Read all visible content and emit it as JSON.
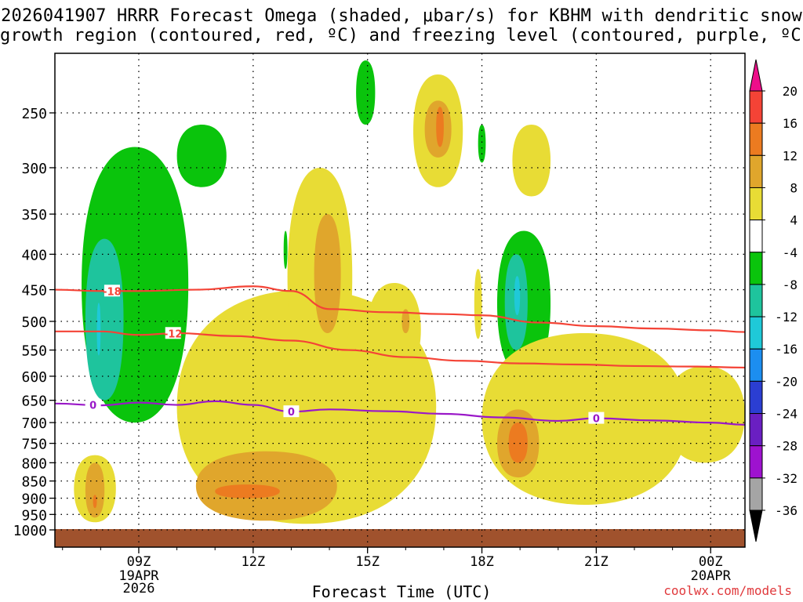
{
  "title": {
    "line1": "2026041907 HRRR Forecast Omega (shaded, μbar/s) for KBHM with dendritic snow",
    "line2": "growth region (contoured, red, ºC) and freezing level (contoured, purple, ºC)"
  },
  "credit": "coolwx.com/models",
  "chart_data": {
    "type": "contour",
    "title": "2026041907 HRRR Forecast Omega (shaded, μbar/s) for KBHM with dendritic snow growth region (contoured, red, ºC) and freezing level (contoured, purple, ºC)",
    "xlabel": "Forecast Time (UTC)",
    "ylabel": "",
    "xlim_hours": [
      6.8,
      24.9
    ],
    "ylim_mb": [
      1000,
      200
    ],
    "x_ticks": [
      {
        "hour": 9,
        "label": "09Z",
        "sub1": "19APR",
        "sub2": "2026"
      },
      {
        "hour": 12,
        "label": "12Z",
        "sub1": "",
        "sub2": ""
      },
      {
        "hour": 15,
        "label": "15Z",
        "sub1": "",
        "sub2": ""
      },
      {
        "hour": 18,
        "label": "18Z",
        "sub1": "",
        "sub2": ""
      },
      {
        "hour": 21,
        "label": "21Z",
        "sub1": "",
        "sub2": ""
      },
      {
        "hour": 24,
        "label": "00Z",
        "sub1": "20APR",
        "sub2": ""
      }
    ],
    "y_ticks": [
      250,
      300,
      350,
      400,
      450,
      500,
      550,
      600,
      650,
      700,
      750,
      800,
      850,
      900,
      950,
      1000
    ],
    "grid": true,
    "colorbar": {
      "levels": [
        20,
        16,
        12,
        8,
        4,
        -4,
        -8,
        -12,
        -16,
        -20,
        -24,
        -28,
        -32,
        -36
      ],
      "colors": [
        "#ee0e8a",
        "#f44336",
        "#ec7b20",
        "#e0a62c",
        "#e8dc35",
        "#ffffff",
        "#0ac40c",
        "#1ec49d",
        "#1fc9d8",
        "#1c8ef0",
        "#2b3ed2",
        "#6a1fc2",
        "#9e12cf",
        "#a5a5a5",
        "#000000"
      ]
    },
    "omega_regions": [
      {
        "label": "4",
        "color": "#e8dc35",
        "hour_range": [
          7.3,
          8.4
        ],
        "mb_range": [
          975,
          780
        ]
      },
      {
        "label": "8",
        "color": "#e0a62c",
        "hour_range": [
          7.6,
          8.1
        ],
        "mb_range": [
          960,
          800
        ]
      },
      {
        "label": "12",
        "color": "#ec7b20",
        "hour_range": [
          7.8,
          7.9
        ],
        "mb_range": [
          930,
          890
        ]
      },
      {
        "label": "-4",
        "color": "#0ac40c",
        "hour_range": [
          7.5,
          10.3
        ],
        "mb_range": [
          700,
          280
        ]
      },
      {
        "label": "-8",
        "color": "#1ec49d",
        "hour_range": [
          7.6,
          8.6
        ],
        "mb_range": [
          650,
          380
        ]
      },
      {
        "label": "-12",
        "color": "#1fc9d8",
        "hour_range": [
          7.9,
          8.0
        ],
        "mb_range": [
          560,
          470
        ]
      },
      {
        "label": "4",
        "color": "#e8dc35",
        "hour_range": [
          10.0,
          16.8
        ],
        "mb_range": [
          980,
          450
        ]
      },
      {
        "label": "8",
        "color": "#e0a62c",
        "hour_range": [
          10.5,
          14.2
        ],
        "mb_range": [
          970,
          770
        ]
      },
      {
        "label": "12",
        "color": "#ec7b20",
        "hour_range": [
          11.0,
          12.7
        ],
        "mb_range": [
          900,
          860
        ]
      },
      {
        "label": "-4",
        "color": "#0ac40c",
        "hour_range": [
          10.0,
          11.3
        ],
        "mb_range": [
          320,
          260
        ]
      },
      {
        "label": "-4",
        "color": "#0ac40c",
        "hour_range": [
          12.8,
          12.9
        ],
        "mb_range": [
          420,
          370
        ]
      },
      {
        "label": "4",
        "color": "#e8dc35",
        "hour_range": [
          12.9,
          14.6
        ],
        "mb_range": [
          620,
          300
        ]
      },
      {
        "label": "8",
        "color": "#e0a62c",
        "hour_range": [
          13.6,
          14.3
        ],
        "mb_range": [
          520,
          350
        ]
      },
      {
        "label": "-4",
        "color": "#0ac40c",
        "hour_range": [
          14.7,
          15.2
        ],
        "mb_range": [
          260,
          210
        ]
      },
      {
        "label": "4",
        "color": "#e8dc35",
        "hour_range": [
          15.0,
          16.4
        ],
        "mb_range": [
          600,
          440
        ]
      },
      {
        "label": "8",
        "color": "#e0a62c",
        "hour_range": [
          15.9,
          16.1
        ],
        "mb_range": [
          520,
          480
        ]
      },
      {
        "label": "4",
        "color": "#e8dc35",
        "hour_range": [
          16.2,
          17.5
        ],
        "mb_range": [
          320,
          220
        ]
      },
      {
        "label": "8",
        "color": "#e0a62c",
        "hour_range": [
          16.5,
          17.2
        ],
        "mb_range": [
          290,
          240
        ]
      },
      {
        "label": "12",
        "color": "#ec7b20",
        "hour_range": [
          16.8,
          17.0
        ],
        "mb_range": [
          280,
          245
        ]
      },
      {
        "label": "-4",
        "color": "#0ac40c",
        "hour_range": [
          17.9,
          18.1
        ],
        "mb_range": [
          295,
          260
        ]
      },
      {
        "label": "4",
        "color": "#e8dc35",
        "hour_range": [
          17.8,
          18.0
        ],
        "mb_range": [
          530,
          420
        ]
      },
      {
        "label": "-4",
        "color": "#0ac40c",
        "hour_range": [
          18.4,
          19.8
        ],
        "mb_range": [
          600,
          370
        ]
      },
      {
        "label": "-8",
        "color": "#1ec49d",
        "hour_range": [
          18.6,
          19.2
        ],
        "mb_range": [
          550,
          400
        ]
      },
      {
        "label": "-12",
        "color": "#1fc9d8",
        "hour_range": [
          18.85,
          19.0
        ],
        "mb_range": [
          490,
          430
        ]
      },
      {
        "label": "4",
        "color": "#e8dc35",
        "hour_range": [
          18.8,
          19.8
        ],
        "mb_range": [
          330,
          260
        ]
      },
      {
        "label": "4",
        "color": "#e8dc35",
        "hour_range": [
          18.0,
          23.4
        ],
        "mb_range": [
          920,
          520
        ]
      },
      {
        "label": "8",
        "color": "#e0a62c",
        "hour_range": [
          18.4,
          19.5
        ],
        "mb_range": [
          840,
          670
        ]
      },
      {
        "label": "12",
        "color": "#ec7b20",
        "hour_range": [
          18.7,
          19.2
        ],
        "mb_range": [
          800,
          700
        ]
      },
      {
        "label": "4",
        "color": "#e8dc35",
        "hour_range": [
          22.8,
          24.9
        ],
        "mb_range": [
          800,
          580
        ]
      }
    ],
    "dendritic_contours": [
      {
        "label": "-18",
        "color": "#f44336",
        "hours": [
          6.8,
          8.0,
          9.0,
          10.5,
          12.0,
          13.0,
          14.0,
          15.5,
          17.0,
          18.0,
          19.5,
          21.0,
          22.5,
          24.0,
          24.9
        ],
        "mb": [
          450,
          452,
          452,
          450,
          445,
          452,
          480,
          485,
          488,
          490,
          502,
          508,
          512,
          515,
          518
        ]
      },
      {
        "label": "-12",
        "color": "#f44336",
        "hours": [
          6.8,
          8.0,
          9.0,
          10.0,
          11.5,
          13.0,
          14.5,
          16.0,
          17.5,
          19.0,
          20.5,
          22.0,
          23.5,
          24.9
        ],
        "mb": [
          517,
          517,
          523,
          520,
          525,
          533,
          550,
          563,
          570,
          575,
          577,
          580,
          581,
          583
        ]
      }
    ],
    "freezing_level": {
      "label": "0",
      "color": "#9a18c8",
      "hours": [
        6.8,
        8.0,
        9.0,
        10.0,
        11.0,
        12.0,
        13.0,
        14.0,
        15.5,
        17.0,
        18.5,
        20.0,
        21.0,
        22.5,
        24.0,
        24.9
      ],
      "mb": [
        657,
        661,
        655,
        660,
        652,
        660,
        675,
        670,
        674,
        680,
        688,
        696,
        690,
        695,
        700,
        705
      ]
    },
    "contour_labels": [
      "-18",
      "-12",
      "0",
      "0",
      "0"
    ]
  }
}
